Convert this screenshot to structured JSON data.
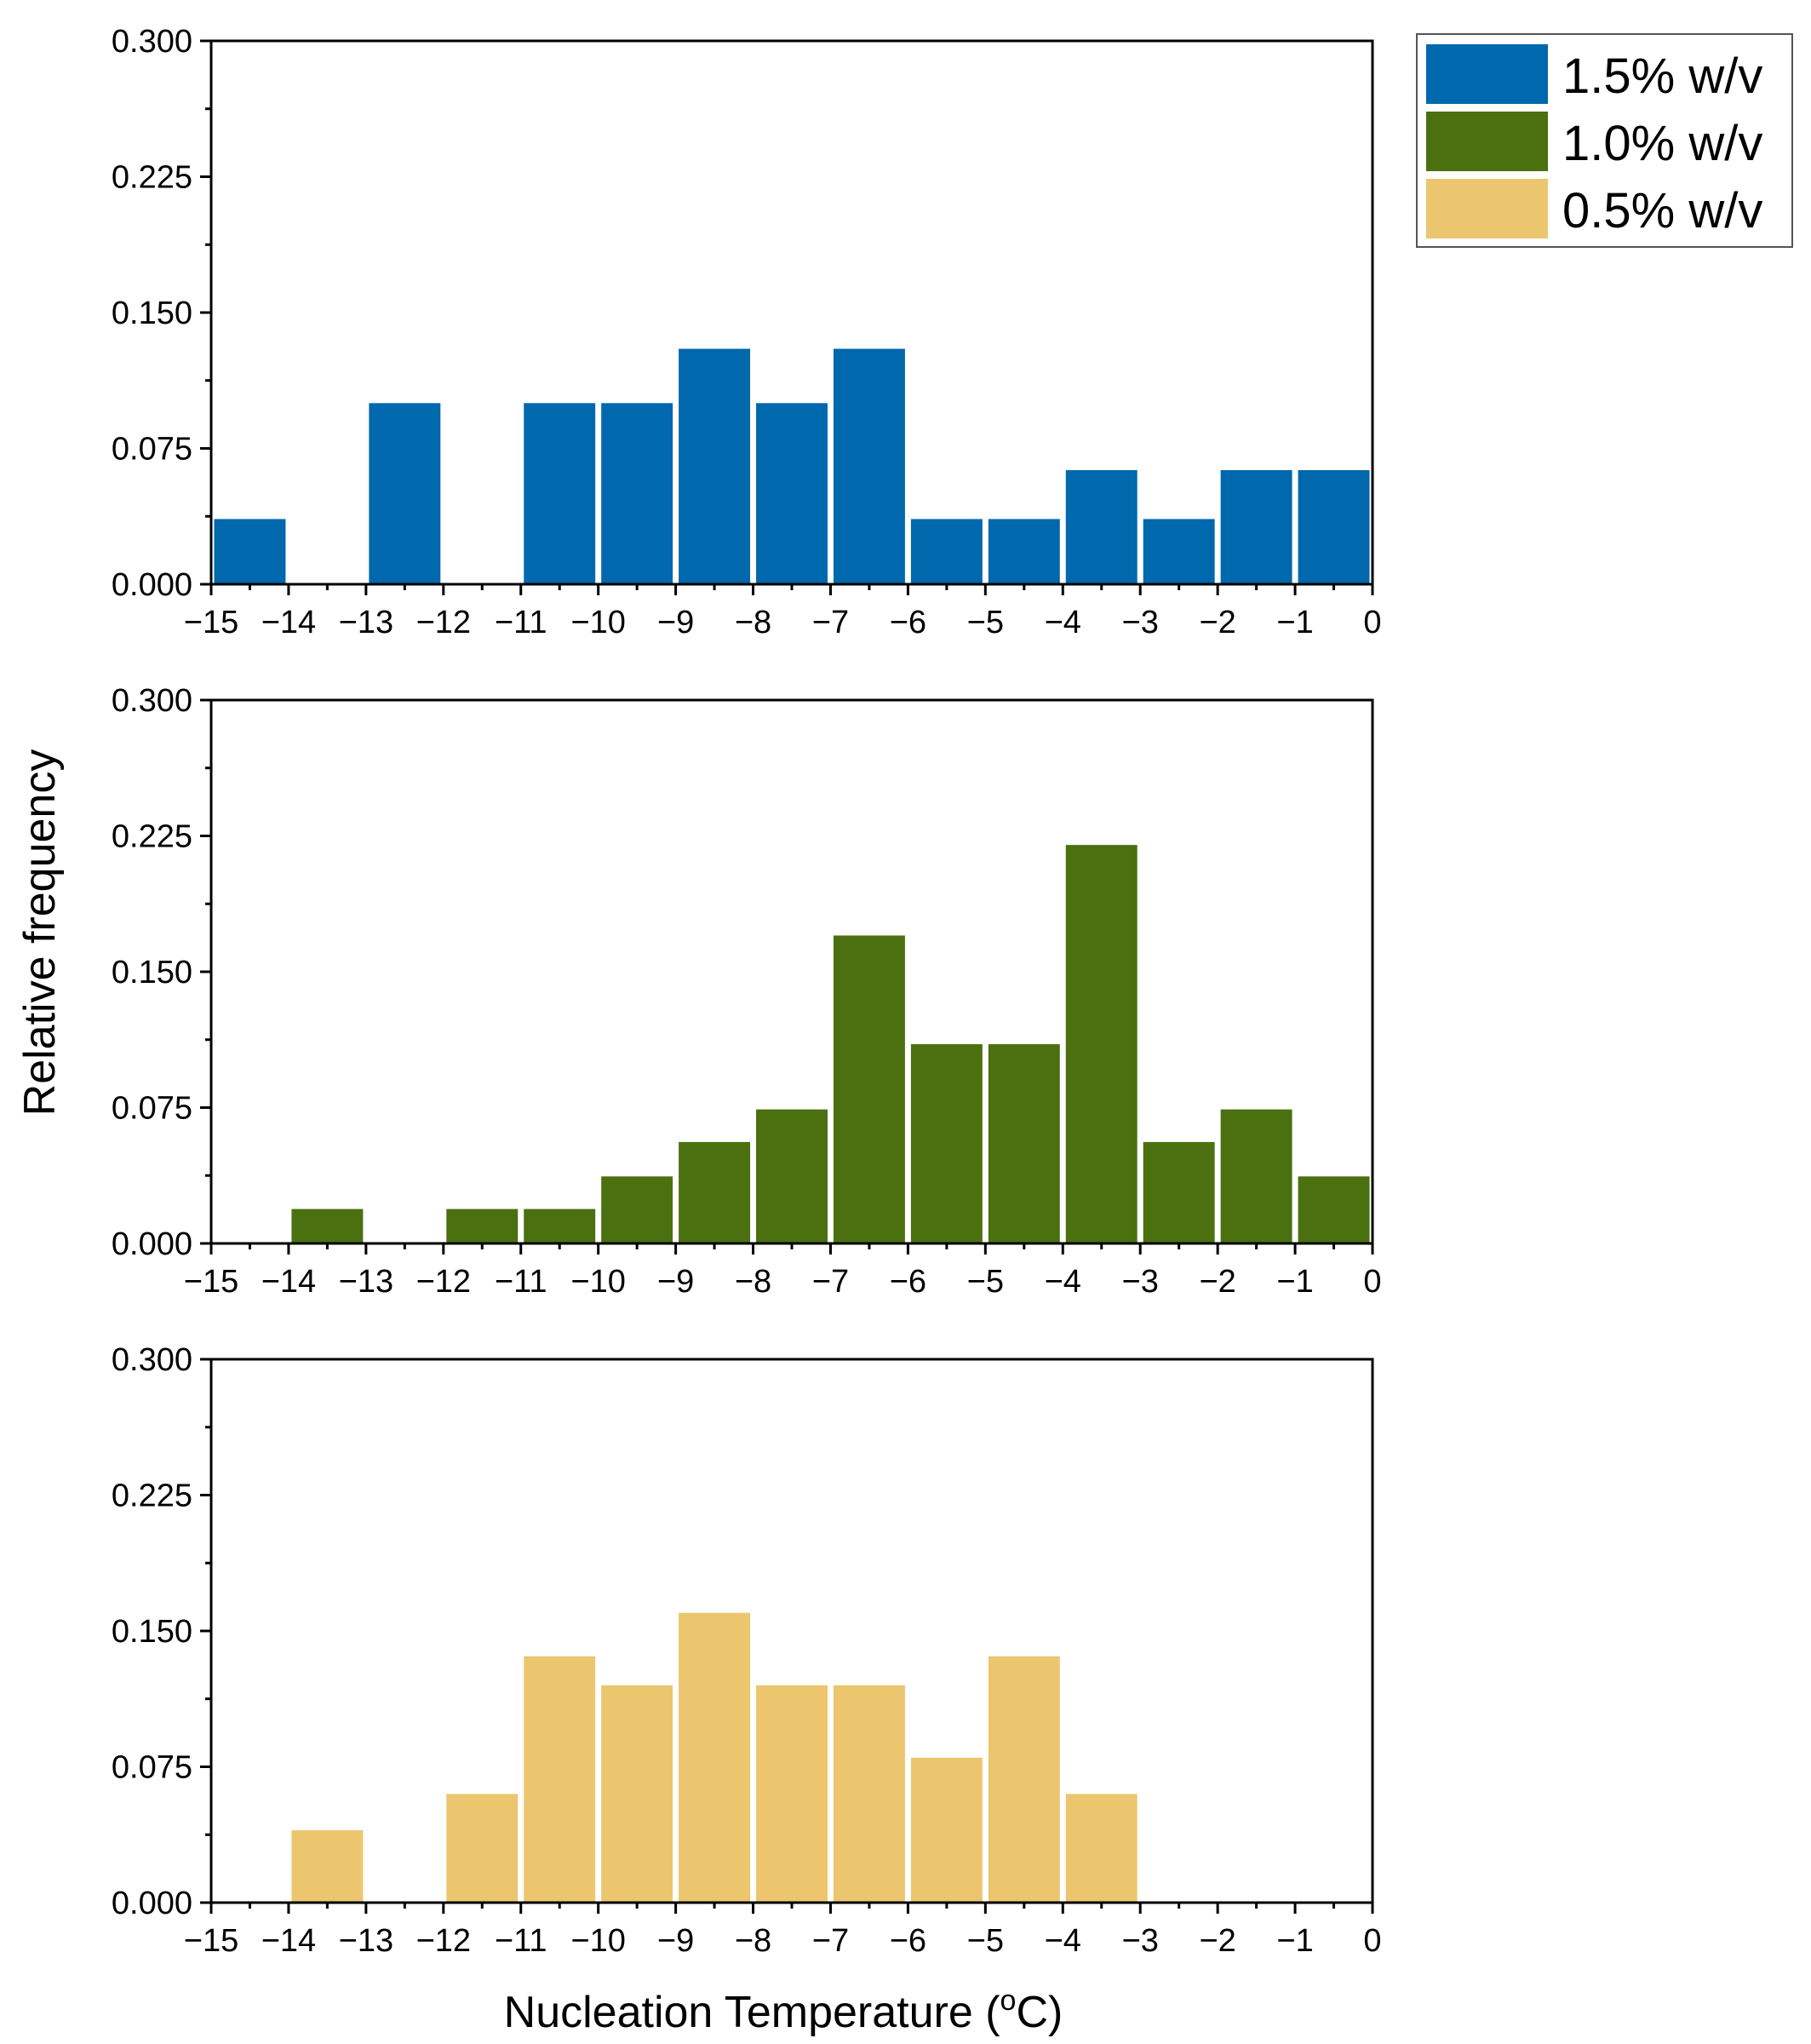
{
  "colors": {
    "series_1_5": "#0068AD",
    "series_1_0": "#4A7010",
    "series_0_5": "#ECC66E",
    "axis": "#000000"
  },
  "legend": {
    "items": [
      {
        "label": "1.5% w/v",
        "color": "#0068AD"
      },
      {
        "label": "1.0% w/v",
        "color": "#4A7010"
      },
      {
        "label": "0.5% w/v",
        "color": "#ECC66E"
      }
    ]
  },
  "chart_data": [
    {
      "type": "bar",
      "series_name": "1.5% w/v",
      "color": "#0068AD",
      "bin_starts": [
        -15,
        -14,
        -13,
        -12,
        -11,
        -10,
        -9,
        -8,
        -7,
        -6,
        -5,
        -4,
        -3,
        -2,
        -1
      ],
      "values": [
        0.036,
        0,
        0.1,
        0,
        0.1,
        0.1,
        0.13,
        0.1,
        0.13,
        0.036,
        0.036,
        0.063,
        0.036,
        0.063,
        0.063
      ],
      "xlim": [
        -15,
        0
      ],
      "ylim": [
        0,
        0.3
      ],
      "xticks": [
        "−15",
        "−14",
        "−13",
        "−12",
        "−11",
        "−10",
        "−9",
        "−8",
        "−7",
        "−6",
        "−5",
        "−4",
        "−3",
        "−2",
        "−1",
        "0"
      ],
      "yticks": [
        "0.000",
        "0.075",
        "0.150",
        "0.225",
        "0.300"
      ]
    },
    {
      "type": "bar",
      "series_name": "1.0% w/v",
      "color": "#4A7010",
      "bin_starts": [
        -15,
        -14,
        -13,
        -12,
        -11,
        -10,
        -9,
        -8,
        -7,
        -6,
        -5,
        -4,
        -3,
        -2,
        -1
      ],
      "values": [
        0,
        0.019,
        0,
        0.019,
        0.019,
        0.037,
        0.056,
        0.074,
        0.17,
        0.11,
        0.11,
        0.22,
        0.056,
        0.074,
        0.037
      ],
      "xlim": [
        -15,
        0
      ],
      "ylim": [
        0,
        0.3
      ],
      "xticks": [
        "−15",
        "−14",
        "−13",
        "−12",
        "−11",
        "−10",
        "−9",
        "−8",
        "−7",
        "−6",
        "−5",
        "−4",
        "−3",
        "−2",
        "−1",
        "0"
      ],
      "yticks": [
        "0.000",
        "0.075",
        "0.150",
        "0.225",
        "0.300"
      ]
    },
    {
      "type": "bar",
      "series_name": "0.5% w/v",
      "color": "#ECC66E",
      "bin_starts": [
        -15,
        -14,
        -13,
        -12,
        -11,
        -10,
        -9,
        -8,
        -7,
        -6,
        -5,
        -4,
        -3,
        -2,
        -1
      ],
      "values": [
        0,
        0.04,
        0,
        0.06,
        0.136,
        0.12,
        0.16,
        0.12,
        0.12,
        0.08,
        0.136,
        0.06,
        0,
        0,
        0
      ],
      "xlim": [
        -15,
        0
      ],
      "ylim": [
        0,
        0.3
      ],
      "xticks": [
        "−15",
        "−14",
        "−13",
        "−12",
        "−11",
        "−10",
        "−9",
        "−8",
        "−7",
        "−6",
        "−5",
        "−4",
        "−3",
        "−2",
        "−1",
        "0"
      ],
      "yticks": [
        "0.000",
        "0.075",
        "0.150",
        "0.225",
        "0.300"
      ]
    }
  ],
  "axes": {
    "ylabel": "Relative frequency",
    "xlabel": "Nucleation Temperature (",
    "xlabel_sup": "o",
    "xlabel_unit": "C)"
  }
}
